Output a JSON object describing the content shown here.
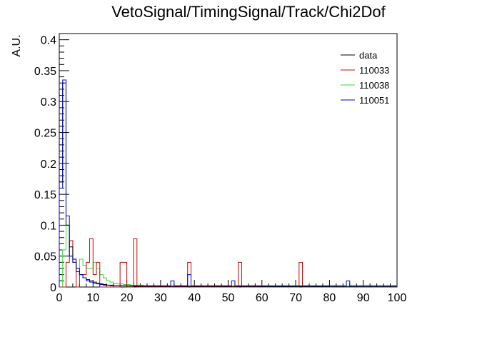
{
  "chart_data": {
    "type": "histogram",
    "title": "VetoSignal/TimingSignal/Track/Chi2Dof",
    "xlabel": "",
    "ylabel": "A.U.",
    "xlim": [
      0,
      100
    ],
    "ylim": [
      0,
      0.41
    ],
    "bin_width": 1,
    "x_ticks": [
      0,
      10,
      20,
      30,
      40,
      50,
      60,
      70,
      80,
      90,
      100
    ],
    "y_ticks": [
      0,
      0.05,
      0.1,
      0.15,
      0.2,
      0.25,
      0.3,
      0.35,
      0.4
    ],
    "x_tick_labels": [
      "0",
      "10",
      "20",
      "30",
      "40",
      "50",
      "60",
      "70",
      "80",
      "90",
      "100"
    ],
    "y_tick_labels": [
      "0",
      "0.05",
      "0.1",
      "0.15",
      "0.2",
      "0.25",
      "0.3",
      "0.35",
      "0.4"
    ],
    "legend_position": "top-right",
    "series": [
      {
        "name": "data",
        "color": "#000000",
        "values": [
          0.17,
          0.33,
          0.1,
          0.065,
          0.045,
          0.03,
          0.02,
          0.015,
          0.012,
          0.01,
          0.008,
          0.006,
          0.005,
          0.004,
          0.003,
          0.003,
          0.002,
          0.002,
          0.002,
          0.002,
          0.0015,
          0.0015,
          0.001,
          0.001,
          0.001,
          0.001,
          0.001,
          0.001,
          0.001,
          0.001,
          0.001,
          0.001,
          0.001,
          0.001,
          0.001,
          0.001,
          0.001,
          0.001,
          0.001,
          0.001,
          0.0008,
          0.0008,
          0.0008,
          0.0008,
          0.0008,
          0.0008,
          0.0008,
          0.0008,
          0.0008,
          0.0008,
          0.0008,
          0.0008,
          0.0008,
          0.0008,
          0.0008,
          0.0008,
          0.0008,
          0.0008,
          0.0008,
          0.0008,
          0.0006,
          0.0006,
          0.0006,
          0.0006,
          0.0006,
          0.0006,
          0.0006,
          0.0006,
          0.0006,
          0.0006,
          0.0006,
          0.0006,
          0.0006,
          0.0006,
          0.0006,
          0.0006,
          0.0006,
          0.0006,
          0.0006,
          0.0006,
          0.0005,
          0.0005,
          0.0005,
          0.0005,
          0.0005,
          0.0005,
          0.0005,
          0.0005,
          0.0005,
          0.0005,
          0.0005,
          0.0005,
          0.0005,
          0.0005,
          0.0005,
          0.0005,
          0.0005,
          0.0005,
          0.0005,
          0.0005
        ]
      },
      {
        "name": "110033",
        "color": "#cc0000",
        "values": [
          0,
          0,
          0.04,
          0.075,
          0.04,
          0,
          0.02,
          0.02,
          0.04,
          0.078,
          0.02,
          0.04,
          0,
          0,
          0,
          0,
          0,
          0,
          0.04,
          0.04,
          0,
          0,
          0.078,
          0,
          0,
          0,
          0,
          0,
          0,
          0,
          0,
          0,
          0,
          0,
          0,
          0,
          0,
          0,
          0.04,
          0,
          0,
          0,
          0,
          0,
          0,
          0,
          0,
          0,
          0,
          0,
          0,
          0,
          0,
          0.04,
          0,
          0,
          0,
          0,
          0,
          0,
          0,
          0,
          0,
          0,
          0,
          0,
          0,
          0,
          0,
          0,
          0,
          0.04,
          0,
          0,
          0,
          0,
          0,
          0,
          0,
          0,
          0,
          0,
          0,
          0,
          0,
          0,
          0,
          0,
          0,
          0,
          0,
          0,
          0,
          0,
          0,
          0,
          0,
          0,
          0,
          0
        ]
      },
      {
        "name": "110038",
        "color": "#33dd33",
        "values": [
          0,
          0.06,
          0.1,
          0.05,
          0.04,
          0.03,
          0.045,
          0.035,
          0.03,
          0.03,
          0.04,
          0.03,
          0.02,
          0.015,
          0.01,
          0.008,
          0.006,
          0.005,
          0.005,
          0.004,
          0.004,
          0.003,
          0.003,
          0.003,
          0.003,
          0.002,
          0.002,
          0.002,
          0.002,
          0.002,
          0.002,
          0.002,
          0.002,
          0.002,
          0.002,
          0.002,
          0.002,
          0.002,
          0.002,
          0.002,
          0.002,
          0.002,
          0.002,
          0.002,
          0.002,
          0.002,
          0.002,
          0.002,
          0.002,
          0.002,
          0.002,
          0.002,
          0.002,
          0.002,
          0.002,
          0.002,
          0.002,
          0.002,
          0.002,
          0.002,
          0.002,
          0.002,
          0.002,
          0.002,
          0.002,
          0.002,
          0.002,
          0.002,
          0.002,
          0.002,
          0.002,
          0.002,
          0.002,
          0.002,
          0.002,
          0.002,
          0.002,
          0.002,
          0.002,
          0.002,
          0.002,
          0.002,
          0.002,
          0.002,
          0.002,
          0.002,
          0.002,
          0.002,
          0.002,
          0.002,
          0.002,
          0.002,
          0.002,
          0.002,
          0.002,
          0.002,
          0.002,
          0.002,
          0.002,
          0.002
        ]
      },
      {
        "name": "110051",
        "color": "#0000cc",
        "values": [
          0.16,
          0.335,
          0.115,
          0.05,
          0.04,
          0.025,
          0.02,
          0.015,
          0.01,
          0.008,
          0.006,
          0.005,
          0.004,
          0.003,
          0.003,
          0.002,
          0.002,
          0.002,
          0.002,
          0.002,
          0.002,
          0.002,
          0.002,
          0.002,
          0.002,
          0.002,
          0.002,
          0.002,
          0.002,
          0.002,
          0.002,
          0.002,
          0.002,
          0.01,
          0.002,
          0.002,
          0.002,
          0.002,
          0.02,
          0.002,
          0.002,
          0.002,
          0.002,
          0.002,
          0.002,
          0.002,
          0.002,
          0.002,
          0.002,
          0.002,
          0.002,
          0.01,
          0.002,
          0.002,
          0.002,
          0.002,
          0.002,
          0.002,
          0.002,
          0.002,
          0.002,
          0.002,
          0.002,
          0.002,
          0.002,
          0.002,
          0.002,
          0.002,
          0.002,
          0.002,
          0.002,
          0.002,
          0.002,
          0.002,
          0.002,
          0.002,
          0.002,
          0.002,
          0.002,
          0.002,
          0.002,
          0.002,
          0.002,
          0.002,
          0.002,
          0.01,
          0.002,
          0.002,
          0.002,
          0.002,
          0.002,
          0.002,
          0.002,
          0.002,
          0.002,
          0.002,
          0.002,
          0.002,
          0.002,
          0.002
        ]
      }
    ]
  }
}
